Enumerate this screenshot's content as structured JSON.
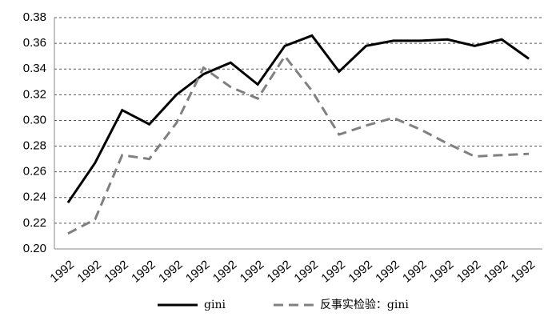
{
  "chart_data": {
    "type": "line",
    "categories": [
      "1992",
      "1992",
      "1992",
      "1992",
      "1992",
      "1992",
      "1992",
      "1992",
      "1992",
      "1992",
      "1992",
      "1992",
      "1992",
      "1992",
      "1992",
      "1992",
      "1992",
      "1992"
    ],
    "series": [
      {
        "name": "gini",
        "color": "#000000",
        "dash": false,
        "values": [
          0.236,
          0.267,
          0.308,
          0.297,
          0.32,
          0.336,
          0.345,
          0.328,
          0.358,
          0.366,
          0.338,
          0.358,
          0.362,
          0.362,
          0.363,
          0.358,
          0.363,
          0.348
        ]
      },
      {
        "name": "反事实检验：gini",
        "color": "#808080",
        "dash": true,
        "values": [
          0.212,
          0.223,
          0.273,
          0.27,
          0.298,
          0.341,
          0.326,
          0.317,
          0.35,
          0.323,
          0.289,
          0.296,
          0.302,
          0.293,
          0.282,
          0.272,
          0.273,
          0.274
        ]
      }
    ],
    "ylim": [
      0.2,
      0.38
    ],
    "yticks": [
      {
        "value": 0.2,
        "label": "0.20"
      },
      0.22,
      0.24,
      0.26,
      0.28,
      {
        "value": 0.3,
        "label": "0.30"
      },
      0.32,
      0.34,
      0.36,
      0.38
    ],
    "grid": true,
    "legend": "bottom"
  }
}
